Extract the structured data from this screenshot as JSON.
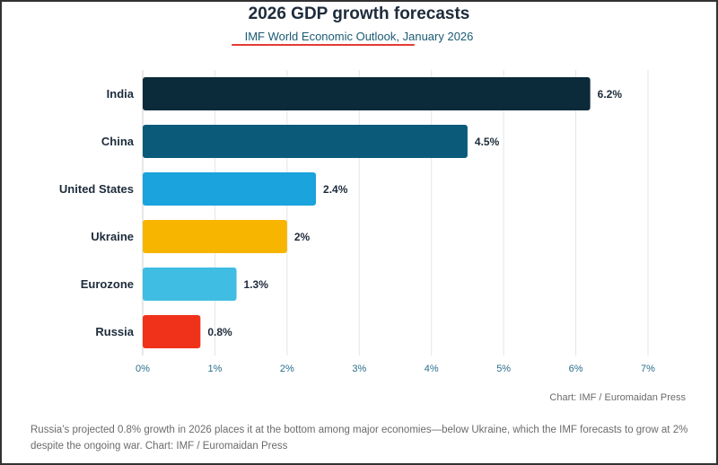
{
  "header": {
    "title": "2026 GDP growth forecasts",
    "subtitle_source": "IMF World Economic Outlook",
    "subtitle_rest": ", January 2026"
  },
  "chart_data": {
    "type": "bar",
    "orientation": "horizontal",
    "categories": [
      "India",
      "China",
      "United States",
      "Ukraine",
      "Eurozone",
      "Russia"
    ],
    "values": [
      6.2,
      4.5,
      2.4,
      2,
      1.3,
      0.8
    ],
    "value_labels": [
      "6.2%",
      "4.5%",
      "2.4%",
      "2%",
      "1.3%",
      "0.8%"
    ],
    "colors": [
      "#0b2a3a",
      "#0b5a7a",
      "#1aa3dc",
      "#f7b500",
      "#3fbde3",
      "#f0321a"
    ],
    "xlim": [
      0,
      7
    ],
    "xticks": [
      0,
      1,
      2,
      3,
      4,
      5,
      6,
      7
    ],
    "xtick_labels": [
      "0%",
      "1%",
      "2%",
      "3%",
      "4%",
      "5%",
      "6%",
      "7%"
    ],
    "title": "2026 GDP growth forecasts",
    "xlabel": "",
    "ylabel": ""
  },
  "footer": {
    "credit": "Chart: IMF / Euromaidan Press",
    "caption": "Russia’s projected 0.8% growth in 2026 places it at the bottom among major economies—below Ukraine, which the IMF forecasts to grow at 2% despite the ongoing war. Chart: IMF / Euromaidan Press"
  }
}
